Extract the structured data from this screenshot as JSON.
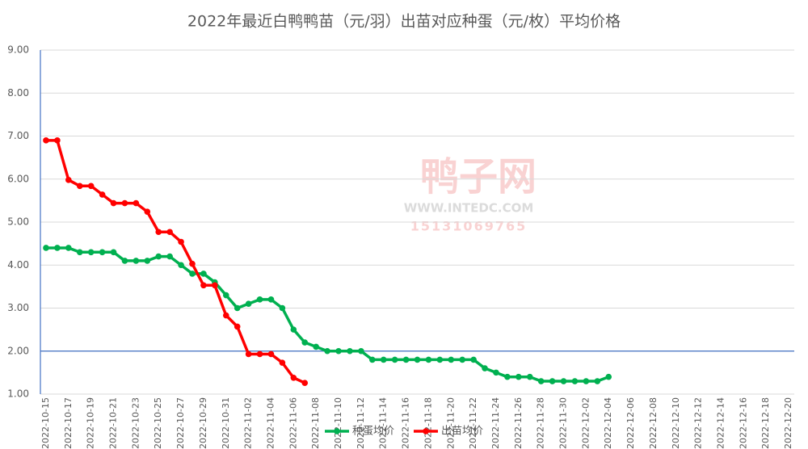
{
  "chart_data": {
    "type": "line",
    "title": "2022年最近白鸭鸭苗（元/羽）出苗对应种蛋（元/枚）平均价格",
    "categories": [
      "2022-10-15",
      null,
      "2022-10-17",
      null,
      "2022-10-19",
      null,
      "2022-10-21",
      null,
      "2022-10-23",
      null,
      "2022-10-25",
      null,
      "2022-10-27",
      null,
      "2022-10-29",
      null,
      "2022-10-31",
      null,
      "2022-11-02",
      null,
      "2022-11-04",
      null,
      "2022-11-06",
      null,
      "2022-11-08",
      null,
      "2022-11-10",
      null,
      "2022-11-12",
      null,
      "2022-11-14",
      null,
      "2022-11-16",
      null,
      "2022-11-18",
      null,
      "2022-11-20",
      null,
      "2022-11-22",
      null,
      "2022-11-24",
      null,
      "2022-11-26",
      null,
      "2022-11-28",
      null,
      "2022-11-30",
      null,
      "2022-12-02",
      null,
      "2022-12-04",
      null,
      "2022-12-06",
      null,
      "2022-12-08",
      null,
      "2022-12-10",
      null,
      "2022-12-12",
      null,
      "2022-12-14",
      null,
      "2022-12-16",
      null,
      "2022-12-18",
      null,
      "2022-12-20"
    ],
    "series": [
      {
        "name": "种蛋均价",
        "color": "#00b050",
        "values": [
          4.4,
          4.4,
          4.4,
          4.3,
          4.3,
          4.3,
          4.3,
          4.1,
          4.1,
          4.1,
          4.2,
          4.2,
          4.0,
          3.8,
          3.8,
          3.6,
          3.3,
          3.0,
          3.1,
          3.2,
          3.2,
          3.0,
          2.5,
          2.2,
          2.1,
          2.0,
          2.0,
          2.0,
          2.0,
          1.8,
          1.8,
          1.8,
          1.8,
          1.8,
          1.8,
          1.8,
          1.8,
          1.8,
          1.8,
          1.6,
          1.5,
          1.4,
          1.4,
          1.4,
          1.3,
          1.3,
          1.3,
          1.3,
          1.3,
          1.3,
          1.4,
          null,
          null,
          null,
          null,
          null,
          null,
          null,
          null,
          null,
          null,
          null,
          null,
          null,
          null,
          null,
          null
        ]
      },
      {
        "name": "出苗均价",
        "color": "#ff0000",
        "values": [
          6.9,
          6.9,
          5.98,
          5.84,
          5.84,
          5.64,
          5.44,
          5.44,
          5.44,
          5.24,
          4.77,
          4.77,
          4.54,
          4.03,
          3.53,
          3.53,
          2.83,
          2.57,
          1.93,
          1.93,
          1.93,
          1.73,
          1.38,
          1.26,
          null,
          null,
          null,
          null,
          null,
          null,
          null,
          null,
          null,
          null,
          null,
          null,
          null,
          null,
          null,
          null,
          null,
          null,
          null,
          null,
          null,
          null,
          null,
          null,
          null,
          null,
          null,
          null,
          null,
          null,
          null,
          null,
          null,
          null,
          null,
          null,
          null,
          null,
          null,
          null,
          null,
          null,
          null
        ]
      }
    ],
    "ylim": [
      1,
      9
    ],
    "yticks": [
      {
        "value": 1,
        "label": "1.00"
      },
      {
        "value": 2,
        "label": "2.00"
      },
      {
        "value": 3,
        "label": "3.00"
      },
      {
        "value": 4,
        "label": "4.00"
      },
      {
        "value": 5,
        "label": "5.00"
      },
      {
        "value": 6,
        "label": "6.00"
      },
      {
        "value": 7,
        "label": "7.00"
      },
      {
        "value": 8,
        "label": "8.00"
      },
      {
        "value": 9,
        "label": "9.00"
      }
    ],
    "x_axis_crosses": 2,
    "grid": true,
    "legend": "bottom",
    "watermark": [
      "鸭子网",
      "WWW.INTEDC.COM",
      "15131069765"
    ]
  }
}
